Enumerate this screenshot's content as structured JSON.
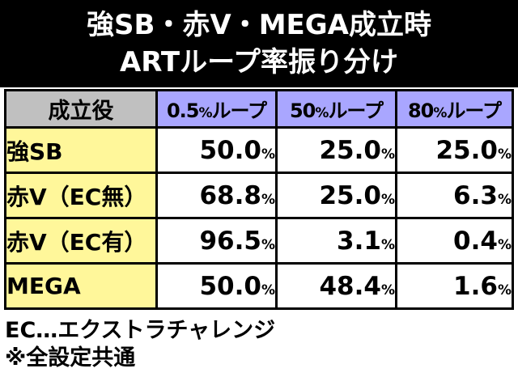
{
  "title": {
    "line1": "強SB・赤V・MEGA成立時",
    "line2": "ARTループ率振り分け"
  },
  "table": {
    "corner_label": "成立役",
    "columns": [
      {
        "num": "0.5",
        "pct": "%",
        "suffix": "ループ"
      },
      {
        "num": "50",
        "pct": "%",
        "suffix": "ループ"
      },
      {
        "num": "80",
        "pct": "%",
        "suffix": "ループ"
      }
    ],
    "rows": [
      {
        "label": "強SB",
        "values": [
          "50.0",
          "25.0",
          "25.0"
        ]
      },
      {
        "label": "赤V（EC無）",
        "values": [
          "68.8",
          "25.0",
          "6.3"
        ]
      },
      {
        "label": "赤V（EC有）",
        "values": [
          "96.5",
          "3.1",
          "0.4"
        ]
      },
      {
        "label": "MEGA",
        "values": [
          "50.0",
          "48.4",
          "1.6"
        ]
      }
    ],
    "unit": "%"
  },
  "notes": {
    "line1": "EC…エクストラチャレンジ",
    "line2": "※全設定共通"
  }
}
